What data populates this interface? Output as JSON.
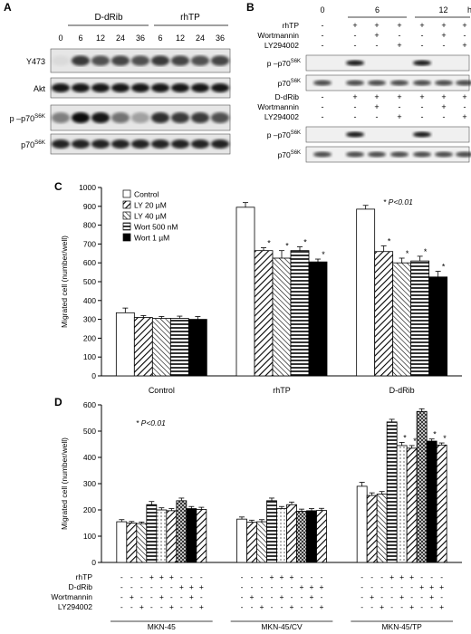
{
  "panelA": {
    "letter": "A",
    "group1": "D-dRib",
    "group2": "rhTP",
    "times": [
      "0",
      "6",
      "12",
      "24",
      "36",
      "6",
      "12",
      "24",
      "36"
    ],
    "rows": [
      {
        "label": "Y473",
        "sup": ""
      },
      {
        "label": "Akt",
        "sup": ""
      },
      {
        "label": "p –p70",
        "sup": "S6K"
      },
      {
        "label": "p70",
        "sup": "S6K"
      }
    ],
    "bands": [
      [
        0.05,
        0.75,
        0.65,
        0.7,
        0.65,
        0.75,
        0.7,
        0.65,
        0.7
      ],
      [
        0.9,
        0.9,
        0.9,
        0.9,
        0.9,
        0.9,
        0.9,
        0.9,
        0.9
      ],
      [
        0.45,
        0.95,
        0.9,
        0.5,
        0.3,
        0.8,
        0.75,
        0.75,
        0.65
      ],
      [
        0.85,
        0.85,
        0.85,
        0.85,
        0.85,
        0.85,
        0.85,
        0.85,
        0.85
      ]
    ]
  },
  "panelB": {
    "letter": "B",
    "times": [
      "0",
      "6",
      "12"
    ],
    "unit": "h",
    "top_rows": [
      "rhTP",
      "Wortmannin",
      "LY294002"
    ],
    "top_signs": [
      [
        "-",
        "+",
        "+",
        "+",
        "+",
        "+",
        "+"
      ],
      [
        "-",
        "-",
        "+",
        "-",
        "-",
        "+",
        "-"
      ],
      [
        "-",
        "-",
        "-",
        "+",
        "-",
        "-",
        "+"
      ]
    ],
    "bottom_rows": [
      "D-dRib",
      "Wortmannin",
      "LY294002"
    ],
    "bottom_signs": [
      [
        "-",
        "+",
        "+",
        "+",
        "+",
        "+",
        "+"
      ],
      [
        "-",
        "-",
        "+",
        "-",
        "-",
        "+",
        "-"
      ],
      [
        "-",
        "-",
        "-",
        "+",
        "-",
        "-",
        "+"
      ]
    ],
    "blot_rows": [
      {
        "label": "p –p70",
        "sup": "S6K"
      },
      {
        "label": "p70",
        "sup": "S6K"
      }
    ],
    "top_bands": [
      [
        0,
        0.9,
        0,
        0,
        0.9,
        0,
        0
      ],
      [
        0.7,
        0.7,
        0.7,
        0.7,
        0.7,
        0.7,
        0.7
      ]
    ],
    "bottom_bands": [
      [
        0,
        0.9,
        0,
        0,
        0.9,
        0,
        0
      ],
      [
        0.7,
        0.7,
        0.7,
        0.7,
        0.7,
        0.7,
        0.7
      ]
    ]
  },
  "chart_data": [
    {
      "panel": "C",
      "type": "bar",
      "ylabel": "Migrated cell (number/well)",
      "ylim": [
        0,
        1000
      ],
      "yticks": [
        0,
        100,
        200,
        300,
        400,
        500,
        600,
        700,
        800,
        900,
        1000
      ],
      "categories": [
        "Control",
        "rhTP",
        "D-dRib"
      ],
      "annotation": "* P<0.01",
      "series": [
        {
          "name": "Control",
          "values": [
            335,
            895,
            885
          ],
          "errors": [
            25,
            25,
            20
          ],
          "star": [
            false,
            false,
            false
          ],
          "pattern": "white"
        },
        {
          "name": "LY 20 µM",
          "values": [
            310,
            665,
            660
          ],
          "errors": [
            10,
            15,
            30
          ],
          "star": [
            false,
            true,
            true
          ],
          "pattern": "diag"
        },
        {
          "name": "LY 40 µM",
          "values": [
            305,
            625,
            600
          ],
          "errors": [
            10,
            40,
            25
          ],
          "star": [
            false,
            true,
            true
          ],
          "pattern": "diag2"
        },
        {
          "name": "Wort 500 nM",
          "values": [
            305,
            665,
            610
          ],
          "errors": [
            12,
            20,
            25
          ],
          "star": [
            false,
            true,
            true
          ],
          "pattern": "horiz"
        },
        {
          "name": "Wort 1 µM",
          "values": [
            300,
            605,
            525
          ],
          "errors": [
            15,
            15,
            30
          ],
          "star": [
            false,
            true,
            true
          ],
          "pattern": "black"
        }
      ]
    },
    {
      "panel": "D",
      "type": "bar",
      "ylabel": "Migrated cell (number/well)",
      "ylim": [
        0,
        600
      ],
      "yticks": [
        0,
        100,
        200,
        300,
        400,
        500,
        600
      ],
      "categories": [
        "MKN-45",
        "MKN-45/CV",
        "MKN-45/TP"
      ],
      "annotation": "* P<0.01",
      "values": [
        [
          155,
          150,
          148,
          220,
          200,
          197,
          235,
          205,
          202
        ],
        [
          165,
          153,
          155,
          235,
          205,
          220,
          195,
          197,
          198
        ],
        [
          290,
          255,
          260,
          535,
          445,
          435,
          575,
          462,
          447
        ]
      ],
      "errors": [
        [
          8,
          6,
          6,
          12,
          8,
          8,
          10,
          8,
          8
        ],
        [
          8,
          8,
          8,
          10,
          8,
          10,
          8,
          8,
          8
        ],
        [
          15,
          10,
          10,
          10,
          12,
          10,
          10,
          8,
          8
        ]
      ],
      "stars": [
        [
          false,
          false,
          false,
          false,
          false,
          false,
          false,
          false,
          false
        ],
        [
          false,
          false,
          false,
          false,
          false,
          false,
          false,
          false,
          false
        ],
        [
          false,
          false,
          false,
          false,
          true,
          true,
          false,
          true,
          true
        ]
      ],
      "patterns": [
        "white",
        "diag",
        "diag2",
        "horiz",
        "dots",
        "diag",
        "cross",
        "black",
        "diag"
      ],
      "condition_rows": [
        "rhTP",
        "D-dRib",
        "Wortmannin",
        "LY294002"
      ],
      "condition_signs": [
        [
          "-",
          "-",
          "-",
          "+",
          "+",
          "+",
          "-",
          "-",
          "-"
        ],
        [
          "-",
          "-",
          "-",
          "-",
          "-",
          "-",
          "+",
          "+",
          "+"
        ],
        [
          "-",
          "+",
          "-",
          "-",
          "+",
          "-",
          "-",
          "+",
          "-"
        ],
        [
          "-",
          "-",
          "+",
          "-",
          "-",
          "+",
          "-",
          "-",
          "+"
        ]
      ]
    }
  ]
}
